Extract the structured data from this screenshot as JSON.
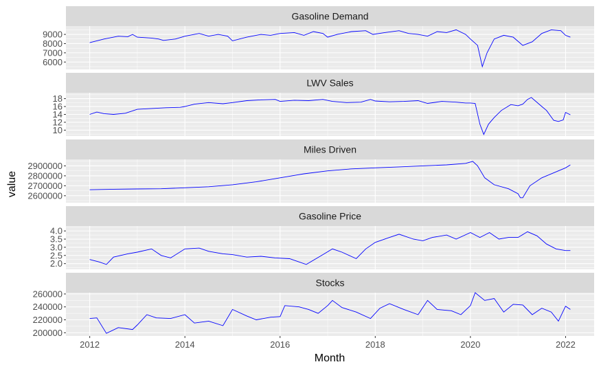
{
  "chart_data": {
    "type": "line",
    "ylabel": "value",
    "xlabel": "Month",
    "x_ticks": [
      "2012",
      "2014",
      "2016",
      "2018",
      "2020",
      "2022"
    ],
    "x_range": [
      2011.5,
      2022.6
    ],
    "line_color": "#0000ff",
    "panel_background": "#ebebeb",
    "strip_background": "#d9d9d9",
    "grid": true,
    "panels": [
      {
        "title": "Gasoline Demand",
        "ylim": [
          5200,
          9900
        ],
        "yticks": [
          6000,
          7000,
          8000,
          9000
        ],
        "ytick_labels": [
          "6000",
          "7000",
          "8000",
          "9000"
        ],
        "points": [
          [
            2012.0,
            8100
          ],
          [
            2012.3,
            8500
          ],
          [
            2012.6,
            8800
          ],
          [
            2012.8,
            8750
          ],
          [
            2012.9,
            9000
          ],
          [
            2013.0,
            8700
          ],
          [
            2013.3,
            8600
          ],
          [
            2013.45,
            8500
          ],
          [
            2013.55,
            8350
          ],
          [
            2013.8,
            8500
          ],
          [
            2014.0,
            8800
          ],
          [
            2014.3,
            9100
          ],
          [
            2014.5,
            8800
          ],
          [
            2014.7,
            9000
          ],
          [
            2014.9,
            8800
          ],
          [
            2015.0,
            8300
          ],
          [
            2015.3,
            8700
          ],
          [
            2015.6,
            9000
          ],
          [
            2015.8,
            8900
          ],
          [
            2016.0,
            9100
          ],
          [
            2016.3,
            9200
          ],
          [
            2016.5,
            8900
          ],
          [
            2016.7,
            9300
          ],
          [
            2016.9,
            9100
          ],
          [
            2017.0,
            8700
          ],
          [
            2017.2,
            9000
          ],
          [
            2017.5,
            9300
          ],
          [
            2017.8,
            9400
          ],
          [
            2017.95,
            9000
          ],
          [
            2018.2,
            9200
          ],
          [
            2018.5,
            9400
          ],
          [
            2018.7,
            9100
          ],
          [
            2018.9,
            9000
          ],
          [
            2019.1,
            8800
          ],
          [
            2019.3,
            9300
          ],
          [
            2019.5,
            9200
          ],
          [
            2019.7,
            9500
          ],
          [
            2019.9,
            9000
          ],
          [
            2020.0,
            8500
          ],
          [
            2020.15,
            7800
          ],
          [
            2020.25,
            5500
          ],
          [
            2020.35,
            7000
          ],
          [
            2020.5,
            8500
          ],
          [
            2020.7,
            8900
          ],
          [
            2020.9,
            8700
          ],
          [
            2021.1,
            7800
          ],
          [
            2021.3,
            8200
          ],
          [
            2021.5,
            9100
          ],
          [
            2021.7,
            9500
          ],
          [
            2021.9,
            9400
          ],
          [
            2022.0,
            8900
          ],
          [
            2022.1,
            8700
          ]
        ]
      },
      {
        "title": "LWV Sales",
        "ylim": [
          8.5,
          19.5
        ],
        "yticks": [
          10,
          12,
          14,
          16,
          18
        ],
        "ytick_labels": [
          "10",
          "12",
          "14",
          "16",
          "18"
        ],
        "points": [
          [
            2012.0,
            14.0
          ],
          [
            2012.15,
            14.6
          ],
          [
            2012.3,
            14.2
          ],
          [
            2012.5,
            14.0
          ],
          [
            2012.75,
            14.3
          ],
          [
            2013.0,
            15.3
          ],
          [
            2013.3,
            15.5
          ],
          [
            2013.6,
            15.7
          ],
          [
            2013.9,
            15.8
          ],
          [
            2014.0,
            16.0
          ],
          [
            2014.2,
            16.6
          ],
          [
            2014.5,
            17.0
          ],
          [
            2014.8,
            16.7
          ],
          [
            2015.0,
            17.0
          ],
          [
            2015.3,
            17.5
          ],
          [
            2015.6,
            17.7
          ],
          [
            2015.9,
            17.8
          ],
          [
            2016.0,
            17.3
          ],
          [
            2016.3,
            17.6
          ],
          [
            2016.6,
            17.5
          ],
          [
            2016.9,
            17.8
          ],
          [
            2017.1,
            17.3
          ],
          [
            2017.4,
            17.0
          ],
          [
            2017.7,
            17.1
          ],
          [
            2017.9,
            17.8
          ],
          [
            2018.0,
            17.4
          ],
          [
            2018.3,
            17.2
          ],
          [
            2018.6,
            17.3
          ],
          [
            2018.9,
            17.5
          ],
          [
            2019.1,
            16.8
          ],
          [
            2019.4,
            17.3
          ],
          [
            2019.7,
            17.1
          ],
          [
            2019.9,
            16.9
          ],
          [
            2020.0,
            16.9
          ],
          [
            2020.1,
            16.8
          ],
          [
            2020.2,
            11.5
          ],
          [
            2020.28,
            8.9
          ],
          [
            2020.38,
            11.5
          ],
          [
            2020.5,
            13.2
          ],
          [
            2020.65,
            15.0
          ],
          [
            2020.85,
            16.5
          ],
          [
            2021.0,
            16.2
          ],
          [
            2021.1,
            16.6
          ],
          [
            2021.2,
            17.8
          ],
          [
            2021.28,
            18.3
          ],
          [
            2021.5,
            16.0
          ],
          [
            2021.6,
            15.0
          ],
          [
            2021.75,
            12.5
          ],
          [
            2021.85,
            12.2
          ],
          [
            2021.95,
            12.6
          ],
          [
            2022.0,
            14.5
          ],
          [
            2022.1,
            13.9
          ]
        ]
      },
      {
        "title": "Miles Driven",
        "ylim": [
          2530000,
          2965000
        ],
        "yticks": [
          2600000,
          2700000,
          2800000,
          2900000
        ],
        "ytick_labels": [
          "2600000",
          "2700000",
          "2800000",
          "2900000"
        ],
        "points": [
          [
            2012.0,
            2660000
          ],
          [
            2012.5,
            2665000
          ],
          [
            2013.0,
            2668000
          ],
          [
            2013.5,
            2670000
          ],
          [
            2014.0,
            2680000
          ],
          [
            2014.5,
            2690000
          ],
          [
            2015.0,
            2710000
          ],
          [
            2015.5,
            2740000
          ],
          [
            2016.0,
            2780000
          ],
          [
            2016.5,
            2820000
          ],
          [
            2017.0,
            2850000
          ],
          [
            2017.5,
            2870000
          ],
          [
            2018.0,
            2880000
          ],
          [
            2018.5,
            2890000
          ],
          [
            2019.0,
            2900000
          ],
          [
            2019.5,
            2910000
          ],
          [
            2019.9,
            2925000
          ],
          [
            2020.05,
            2945000
          ],
          [
            2020.15,
            2900000
          ],
          [
            2020.3,
            2780000
          ],
          [
            2020.5,
            2710000
          ],
          [
            2020.8,
            2670000
          ],
          [
            2021.0,
            2620000
          ],
          [
            2021.05,
            2580000
          ],
          [
            2021.1,
            2580000
          ],
          [
            2021.25,
            2700000
          ],
          [
            2021.5,
            2780000
          ],
          [
            2021.75,
            2830000
          ],
          [
            2022.0,
            2880000
          ],
          [
            2022.1,
            2910000
          ]
        ]
      },
      {
        "title": "Gasoline Price",
        "ylim": [
          1.65,
          4.3
        ],
        "yticks": [
          2.0,
          2.5,
          3.0,
          3.5,
          4.0
        ],
        "ytick_labels": [
          "2.0",
          "2.5",
          "3.0",
          "3.5",
          "4.0"
        ],
        "points": [
          [
            2012.0,
            2.25
          ],
          [
            2012.2,
            2.1
          ],
          [
            2012.35,
            1.95
          ],
          [
            2012.5,
            2.4
          ],
          [
            2012.8,
            2.6
          ],
          [
            2013.0,
            2.7
          ],
          [
            2013.3,
            2.9
          ],
          [
            2013.5,
            2.5
          ],
          [
            2013.7,
            2.35
          ],
          [
            2014.0,
            2.9
          ],
          [
            2014.3,
            2.95
          ],
          [
            2014.5,
            2.75
          ],
          [
            2014.8,
            2.6
          ],
          [
            2015.0,
            2.55
          ],
          [
            2015.3,
            2.4
          ],
          [
            2015.6,
            2.45
          ],
          [
            2015.9,
            2.35
          ],
          [
            2016.2,
            2.3
          ],
          [
            2016.55,
            1.95
          ],
          [
            2016.9,
            2.55
          ],
          [
            2017.1,
            2.9
          ],
          [
            2017.3,
            2.7
          ],
          [
            2017.6,
            2.3
          ],
          [
            2017.8,
            2.9
          ],
          [
            2018.0,
            3.3
          ],
          [
            2018.3,
            3.6
          ],
          [
            2018.5,
            3.8
          ],
          [
            2018.8,
            3.5
          ],
          [
            2019.0,
            3.4
          ],
          [
            2019.2,
            3.6
          ],
          [
            2019.5,
            3.75
          ],
          [
            2019.7,
            3.5
          ],
          [
            2020.0,
            3.9
          ],
          [
            2020.2,
            3.6
          ],
          [
            2020.4,
            3.9
          ],
          [
            2020.6,
            3.5
          ],
          [
            2020.8,
            3.6
          ],
          [
            2021.0,
            3.6
          ],
          [
            2021.2,
            3.95
          ],
          [
            2021.4,
            3.7
          ],
          [
            2021.6,
            3.2
          ],
          [
            2021.8,
            2.9
          ],
          [
            2022.0,
            2.8
          ],
          [
            2022.1,
            2.8
          ]
        ]
      },
      {
        "title": "Stocks",
        "ylim": [
          195000,
          262000
        ],
        "yticks": [
          200000,
          220000,
          240000,
          260000
        ],
        "ytick_labels": [
          "200000",
          "220000",
          "240000",
          "260000"
        ],
        "points": [
          [
            2012.0,
            222000
          ],
          [
            2012.15,
            223000
          ],
          [
            2012.35,
            199000
          ],
          [
            2012.6,
            208000
          ],
          [
            2012.9,
            205000
          ],
          [
            2013.0,
            212000
          ],
          [
            2013.2,
            228000
          ],
          [
            2013.4,
            223000
          ],
          [
            2013.7,
            222000
          ],
          [
            2014.0,
            228000
          ],
          [
            2014.2,
            215000
          ],
          [
            2014.5,
            218000
          ],
          [
            2014.8,
            211000
          ],
          [
            2015.0,
            236000
          ],
          [
            2015.3,
            226000
          ],
          [
            2015.5,
            220000
          ],
          [
            2015.8,
            224000
          ],
          [
            2016.0,
            225000
          ],
          [
            2016.1,
            242000
          ],
          [
            2016.4,
            240000
          ],
          [
            2016.6,
            236000
          ],
          [
            2016.8,
            230000
          ],
          [
            2017.0,
            242000
          ],
          [
            2017.1,
            250000
          ],
          [
            2017.3,
            239000
          ],
          [
            2017.6,
            232000
          ],
          [
            2017.9,
            222000
          ],
          [
            2018.1,
            238000
          ],
          [
            2018.3,
            245000
          ],
          [
            2018.6,
            236000
          ],
          [
            2018.9,
            228000
          ],
          [
            2019.1,
            250000
          ],
          [
            2019.3,
            236000
          ],
          [
            2019.6,
            234000
          ],
          [
            2019.8,
            228000
          ],
          [
            2020.0,
            242000
          ],
          [
            2020.1,
            262000
          ],
          [
            2020.3,
            250000
          ],
          [
            2020.5,
            253000
          ],
          [
            2020.7,
            232000
          ],
          [
            2020.9,
            244000
          ],
          [
            2021.1,
            243000
          ],
          [
            2021.3,
            228000
          ],
          [
            2021.5,
            238000
          ],
          [
            2021.7,
            232000
          ],
          [
            2021.85,
            218000
          ],
          [
            2022.0,
            241000
          ],
          [
            2022.1,
            236000
          ]
        ]
      }
    ]
  }
}
